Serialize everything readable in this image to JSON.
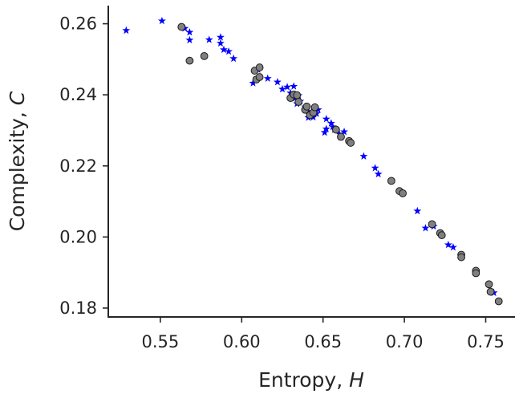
{
  "chart_data": {
    "type": "scatter",
    "title": "",
    "xlabel": {
      "base": "Entropy, ",
      "var": "H"
    },
    "ylabel": {
      "base": "Complexity, ",
      "var": "C"
    },
    "xlim": [
      0.518,
      0.768
    ],
    "ylim": [
      0.1775,
      0.2651
    ],
    "xticks": [
      {
        "value": 0.55,
        "label": "0.55"
      },
      {
        "value": 0.6,
        "label": "0.60"
      },
      {
        "value": 0.65,
        "label": "0.65"
      },
      {
        "value": 0.7,
        "label": "0.70"
      },
      {
        "value": 0.75,
        "label": "0.75"
      }
    ],
    "yticks": [
      {
        "value": 0.18,
        "label": "0.18"
      },
      {
        "value": 0.2,
        "label": "0.20"
      },
      {
        "value": 0.22,
        "label": "0.22"
      },
      {
        "value": 0.24,
        "label": "0.24"
      },
      {
        "value": 0.26,
        "label": "0.26"
      }
    ],
    "grid": false,
    "legend": "none",
    "series": [
      {
        "marker": "star",
        "color": "#0000ff",
        "points": [
          [
            0.529,
            0.2581
          ],
          [
            0.551,
            0.2608
          ],
          [
            0.565,
            0.2587
          ],
          [
            0.568,
            0.2576
          ],
          [
            0.568,
            0.2554
          ],
          [
            0.58,
            0.2555
          ],
          [
            0.587,
            0.2562
          ],
          [
            0.587,
            0.2545
          ],
          [
            0.589,
            0.2527
          ],
          [
            0.592,
            0.2522
          ],
          [
            0.595,
            0.2502
          ],
          [
            0.607,
            0.2433
          ],
          [
            0.61,
            0.2471
          ],
          [
            0.616,
            0.2446
          ],
          [
            0.622,
            0.2436
          ],
          [
            0.625,
            0.2416
          ],
          [
            0.628,
            0.2422
          ],
          [
            0.63,
            0.2405
          ],
          [
            0.632,
            0.2424
          ],
          [
            0.633,
            0.2391
          ],
          [
            0.634,
            0.2375
          ],
          [
            0.635,
            0.2398
          ],
          [
            0.636,
            0.2382
          ],
          [
            0.639,
            0.2366
          ],
          [
            0.641,
            0.2353
          ],
          [
            0.641,
            0.2336
          ],
          [
            0.643,
            0.2352
          ],
          [
            0.644,
            0.2337
          ],
          [
            0.646,
            0.2347
          ],
          [
            0.647,
            0.2358
          ],
          [
            0.651,
            0.2294
          ],
          [
            0.652,
            0.2332
          ],
          [
            0.652,
            0.2304
          ],
          [
            0.655,
            0.232
          ],
          [
            0.656,
            0.231
          ],
          [
            0.657,
            0.2302
          ],
          [
            0.66,
            0.229
          ],
          [
            0.661,
            0.228
          ],
          [
            0.663,
            0.2296
          ],
          [
            0.675,
            0.2227
          ],
          [
            0.682,
            0.2194
          ],
          [
            0.684,
            0.2177
          ],
          [
            0.708,
            0.2073
          ],
          [
            0.713,
            0.2025
          ],
          [
            0.718,
            0.203
          ],
          [
            0.727,
            0.1978
          ],
          [
            0.73,
            0.1971
          ],
          [
            0.755,
            0.1843
          ]
        ]
      },
      {
        "marker": "circle",
        "color": "#808080",
        "points": [
          [
            0.563,
            0.2591
          ],
          [
            0.568,
            0.2496
          ],
          [
            0.577,
            0.2509
          ],
          [
            0.608,
            0.2468
          ],
          [
            0.609,
            0.2443
          ],
          [
            0.611,
            0.2477
          ],
          [
            0.611,
            0.245
          ],
          [
            0.63,
            0.2391
          ],
          [
            0.632,
            0.2401
          ],
          [
            0.634,
            0.2399
          ],
          [
            0.635,
            0.238
          ],
          [
            0.639,
            0.2358
          ],
          [
            0.64,
            0.2367
          ],
          [
            0.642,
            0.2343
          ],
          [
            0.644,
            0.235
          ],
          [
            0.645,
            0.2365
          ],
          [
            0.658,
            0.2302
          ],
          [
            0.661,
            0.2282
          ],
          [
            0.666,
            0.227
          ],
          [
            0.667,
            0.2265
          ],
          [
            0.692,
            0.2158
          ],
          [
            0.697,
            0.2129
          ],
          [
            0.699,
            0.2123
          ],
          [
            0.717,
            0.2036
          ],
          [
            0.722,
            0.2011
          ],
          [
            0.723,
            0.2005
          ],
          [
            0.735,
            0.195
          ],
          [
            0.735,
            0.1943
          ],
          [
            0.744,
            0.1905
          ],
          [
            0.744,
            0.1898
          ],
          [
            0.752,
            0.1867
          ],
          [
            0.753,
            0.1846
          ],
          [
            0.758,
            0.1819
          ]
        ]
      }
    ]
  }
}
